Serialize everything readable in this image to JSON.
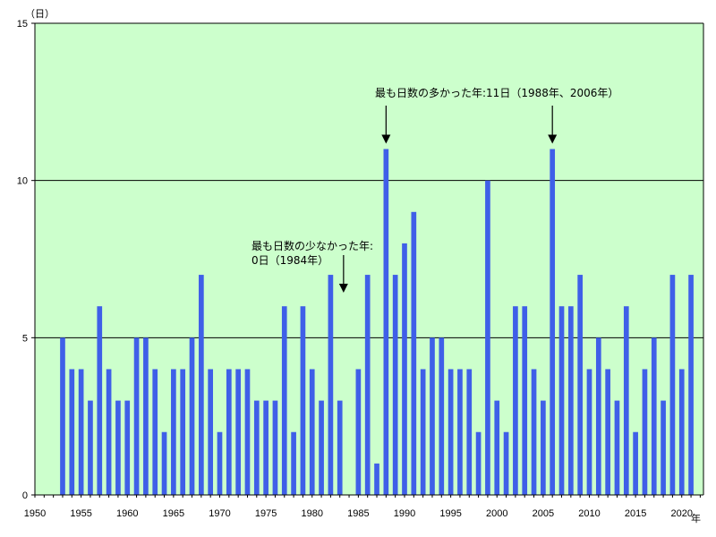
{
  "chart_data": {
    "type": "bar",
    "x_unit": "年",
    "y_unit": "（日）",
    "xlim": [
      1950,
      2022
    ],
    "ylim": [
      0,
      15
    ],
    "x_ticks": [
      1950,
      1955,
      1960,
      1965,
      1970,
      1975,
      1980,
      1985,
      1990,
      1995,
      2000,
      2005,
      2010,
      2015,
      2020
    ],
    "y_ticks": [
      0,
      5,
      10,
      15
    ],
    "grid": true,
    "colors": {
      "bar": "#3f5fe8",
      "plot_background": "#ccffcc"
    },
    "series": [
      {
        "x": [
          1953,
          1954,
          1955,
          1956,
          1957,
          1958,
          1959,
          1960,
          1961,
          1962,
          1963,
          1964,
          1965,
          1966,
          1967,
          1968,
          1969,
          1970,
          1971,
          1972,
          1973,
          1974,
          1975,
          1976,
          1977,
          1978,
          1979,
          1980,
          1981,
          1982,
          1983,
          1984,
          1985,
          1986,
          1987,
          1988,
          1989,
          1990,
          1991,
          1992,
          1993,
          1994,
          1995,
          1996,
          1997,
          1998,
          1999,
          2000,
          2001,
          2002,
          2003,
          2004,
          2005,
          2006,
          2007,
          2008,
          2009,
          2010,
          2011,
          2012,
          2013,
          2014,
          2015,
          2016,
          2017,
          2018,
          2019,
          2020,
          2021
        ],
        "values": [
          5,
          4,
          4,
          3,
          6,
          4,
          3,
          3,
          5,
          5,
          4,
          2,
          4,
          4,
          5,
          7,
          4,
          2,
          4,
          4,
          4,
          3,
          3,
          3,
          6,
          2,
          6,
          4,
          3,
          7,
          3,
          0,
          4,
          7,
          1,
          11,
          7,
          8,
          9,
          4,
          5,
          5,
          4,
          4,
          4,
          2,
          10,
          3,
          2,
          6,
          6,
          4,
          3,
          11,
          6,
          6,
          7,
          4,
          5,
          4,
          3,
          6,
          2,
          4,
          5,
          3,
          7,
          4,
          7
        ]
      }
    ],
    "annotations": [
      {
        "lines": [
          "最も日数の多かった年:11日（1988年、2006年）"
        ],
        "arrows_to_x": [
          1988,
          2006
        ]
      },
      {
        "lines": [
          "最も日数の少なかった年:",
          "0日（1984年）"
        ],
        "arrows_to_x": [
          1984
        ]
      }
    ]
  }
}
